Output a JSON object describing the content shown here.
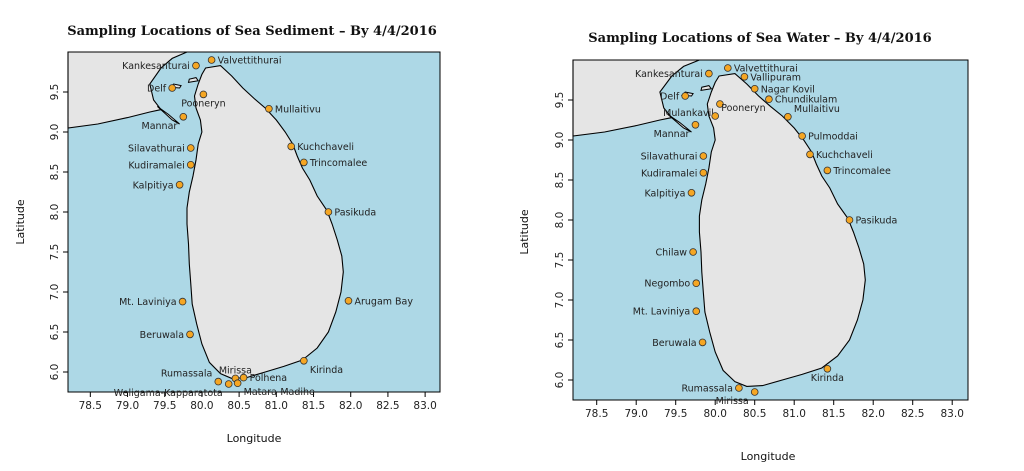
{
  "chart_data": [
    {
      "type": "scatter",
      "title": "Sampling Locations of Sea Sediment – By 4/4/2016",
      "xlabel": "Longitude",
      "ylabel": "Latitude",
      "xlim": [
        78.2,
        83.2
      ],
      "ylim": [
        5.75,
        10.0
      ],
      "xticks": [
        "78.5",
        "79.0",
        "79.5",
        "80.0",
        "80.5",
        "81.0",
        "81.5",
        "82.0",
        "82.5",
        "83.0"
      ],
      "yticks": [
        "6.0",
        "6.5",
        "7.0",
        "7.5",
        "8.0",
        "8.5",
        "9.0",
        "9.5"
      ],
      "grid": false,
      "points": [
        {
          "name": "Kankesanturai",
          "x": 79.92,
          "y": 9.83,
          "anchor": "left"
        },
        {
          "name": "Valvettithurai",
          "x": 80.13,
          "y": 9.9,
          "anchor": "right"
        },
        {
          "name": "Delf",
          "x": 79.6,
          "y": 9.55,
          "anchor": "left"
        },
        {
          "name": "Pooneryn",
          "x": 80.02,
          "y": 9.47,
          "anchor": "below"
        },
        {
          "name": "Mullaitivu",
          "x": 80.9,
          "y": 9.29,
          "anchor": "right"
        },
        {
          "name": "Mannar",
          "x": 79.75,
          "y": 9.19,
          "anchor": "left-below"
        },
        {
          "name": "Kuchchaveli",
          "x": 81.2,
          "y": 8.82,
          "anchor": "right"
        },
        {
          "name": "Silavathurai",
          "x": 79.85,
          "y": 8.8,
          "anchor": "left"
        },
        {
          "name": "Trincomalee",
          "x": 81.37,
          "y": 8.62,
          "anchor": "right"
        },
        {
          "name": "Kudiramalei",
          "x": 79.85,
          "y": 8.59,
          "anchor": "left"
        },
        {
          "name": "Kalpitiya",
          "x": 79.7,
          "y": 8.34,
          "anchor": "left"
        },
        {
          "name": "Pasikuda",
          "x": 81.7,
          "y": 8.0,
          "anchor": "right"
        },
        {
          "name": "Mt. Laviniya",
          "x": 79.74,
          "y": 6.88,
          "anchor": "left"
        },
        {
          "name": "Arugam Bay",
          "x": 81.97,
          "y": 6.89,
          "anchor": "right"
        },
        {
          "name": "Beruwala",
          "x": 79.84,
          "y": 6.47,
          "anchor": "left"
        },
        {
          "name": "Kirinda",
          "x": 81.37,
          "y": 6.14,
          "anchor": "right-below"
        },
        {
          "name": "Mirissa",
          "x": 80.45,
          "y": 5.92,
          "anchor": "above"
        },
        {
          "name": "Rumassala",
          "x": 80.22,
          "y": 5.88,
          "anchor": "left-above"
        },
        {
          "name": "Polhena",
          "x": 80.56,
          "y": 5.93,
          "anchor": "right"
        },
        {
          "name": "Weligama-Kapparatota",
          "x": 80.36,
          "y": 5.85,
          "anchor": "left-below"
        },
        {
          "name": "Matara-Madihe",
          "x": 80.48,
          "y": 5.86,
          "anchor": "right-below"
        }
      ]
    },
    {
      "type": "scatter",
      "title": "Sampling Locations of Sea Water – By 4/4/2016",
      "xlabel": "Longitude",
      "ylabel": "Latitude",
      "xlim": [
        78.2,
        83.2
      ],
      "ylim": [
        5.75,
        10.0
      ],
      "xticks": [
        "78.5",
        "79.0",
        "79.5",
        "80.0",
        "80.5",
        "81.0",
        "81.5",
        "82.0",
        "82.5",
        "83.0"
      ],
      "yticks": [
        "6.0",
        "6.5",
        "7.0",
        "7.5",
        "8.0",
        "8.5",
        "9.0",
        "9.5"
      ],
      "grid": false,
      "points": [
        {
          "name": "Kankesanturai",
          "x": 79.92,
          "y": 9.83,
          "anchor": "left"
        },
        {
          "name": "Valvettithurai",
          "x": 80.16,
          "y": 9.9,
          "anchor": "right"
        },
        {
          "name": "Vallipuram",
          "x": 80.37,
          "y": 9.79,
          "anchor": "right"
        },
        {
          "name": "Nagar Kovil",
          "x": 80.5,
          "y": 9.64,
          "anchor": "right"
        },
        {
          "name": "Delf",
          "x": 79.62,
          "y": 9.55,
          "anchor": "left"
        },
        {
          "name": "Chundikulam",
          "x": 80.68,
          "y": 9.51,
          "anchor": "right"
        },
        {
          "name": "Mulankavil",
          "x": 80.06,
          "y": 9.45,
          "anchor": "left-below"
        },
        {
          "name": "Pooneryn",
          "x": 80.0,
          "y": 9.3,
          "anchor": "right-above"
        },
        {
          "name": "Mullaitivu",
          "x": 80.92,
          "y": 9.29,
          "anchor": "right-above"
        },
        {
          "name": "Mannar",
          "x": 79.75,
          "y": 9.19,
          "anchor": "left-below"
        },
        {
          "name": "Pulmoddai",
          "x": 81.1,
          "y": 9.05,
          "anchor": "right"
        },
        {
          "name": "Kuchchaveli",
          "x": 81.2,
          "y": 8.82,
          "anchor": "right"
        },
        {
          "name": "Silavathurai",
          "x": 79.85,
          "y": 8.8,
          "anchor": "left"
        },
        {
          "name": "Trincomalee",
          "x": 81.42,
          "y": 8.62,
          "anchor": "right"
        },
        {
          "name": "Kudiramalei",
          "x": 79.85,
          "y": 8.59,
          "anchor": "left"
        },
        {
          "name": "Kalpitiya",
          "x": 79.7,
          "y": 8.34,
          "anchor": "left"
        },
        {
          "name": "Pasikuda",
          "x": 81.7,
          "y": 8.0,
          "anchor": "right"
        },
        {
          "name": "Chilaw",
          "x": 79.72,
          "y": 7.6,
          "anchor": "left"
        },
        {
          "name": "Negombo",
          "x": 79.76,
          "y": 7.21,
          "anchor": "left"
        },
        {
          "name": "Mt. Laviniya",
          "x": 79.76,
          "y": 6.86,
          "anchor": "left"
        },
        {
          "name": "Beruwala",
          "x": 79.84,
          "y": 6.47,
          "anchor": "left"
        },
        {
          "name": "Kirinda",
          "x": 81.42,
          "y": 6.14,
          "anchor": "below"
        },
        {
          "name": "Rumassala",
          "x": 80.3,
          "y": 5.9,
          "anchor": "left"
        },
        {
          "name": "Mirissa",
          "x": 80.5,
          "y": 5.85,
          "anchor": "left-below"
        }
      ]
    }
  ],
  "colors": {
    "sea": "#add8e6",
    "land": "#e5e5e5",
    "marker": "#f5a623",
    "coast": "#000000"
  }
}
